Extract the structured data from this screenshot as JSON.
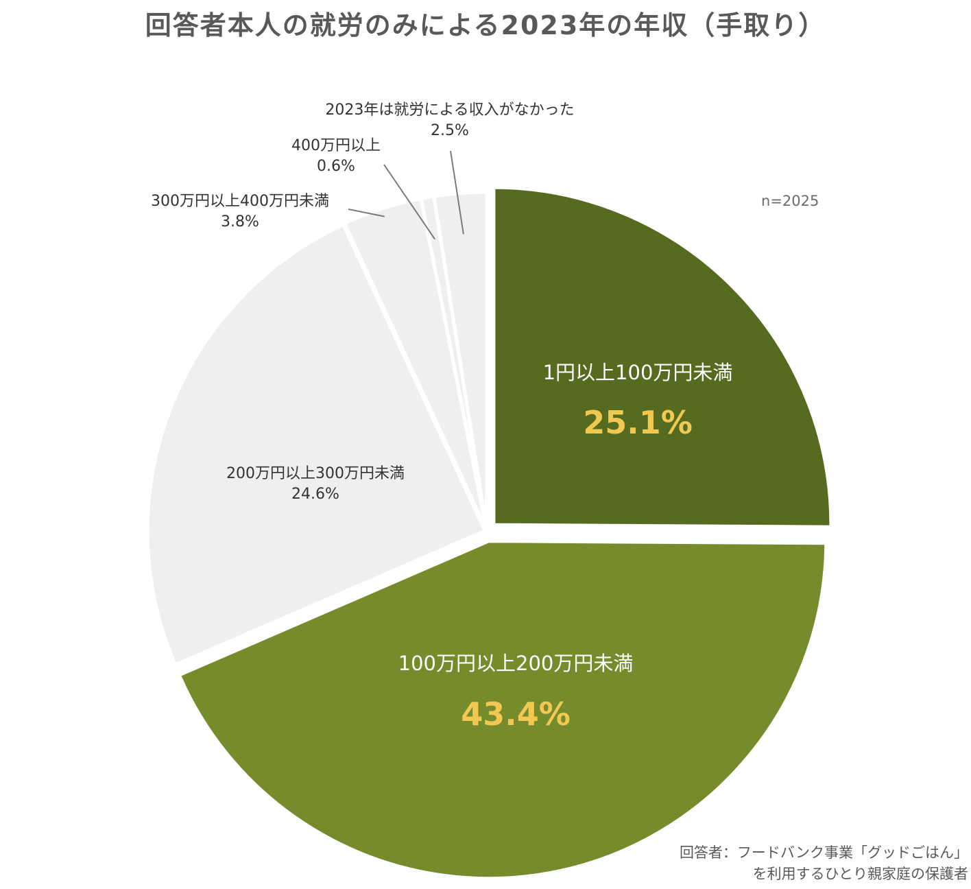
{
  "title": "回答者本人の就労のみによる2023年の年収（手取り）",
  "sample_size": "n=2025",
  "footnote": {
    "line1": "回答者：フードバンク事業「グッドごはん」",
    "line2": "を利用するひとり親家庭の保護者"
  },
  "colors": {
    "dark_green": "#566a20",
    "mid_green": "#768c2c",
    "light_gray": "#f1efed",
    "highlight_text": "#f1c852",
    "label_white": "#ffffff",
    "label_dark": "#333333",
    "leader": "#7a7a7a"
  },
  "chart_data": {
    "type": "pie",
    "start_angle": "12 o'clock",
    "direction": "clockwise",
    "slices": [
      {
        "label": "1円以上100万円未満",
        "value": 25.1,
        "value_label": "25.1%",
        "highlight": true
      },
      {
        "label": "100万円以上200万円未満",
        "value": 43.4,
        "value_label": "43.4%",
        "highlight": true
      },
      {
        "label": "200万円以上300万円未満",
        "value": 24.6,
        "value_label": "24.6%",
        "highlight": false
      },
      {
        "label": "300万円以上400万円未満",
        "value": 3.8,
        "value_label": "3.8%",
        "highlight": false
      },
      {
        "label": "400万円以上",
        "value": 0.6,
        "value_label": "0.6%",
        "highlight": false
      },
      {
        "label": "2023年は就労による収入がなかった",
        "value": 2.5,
        "value_label": "2.5%",
        "highlight": false
      }
    ]
  }
}
